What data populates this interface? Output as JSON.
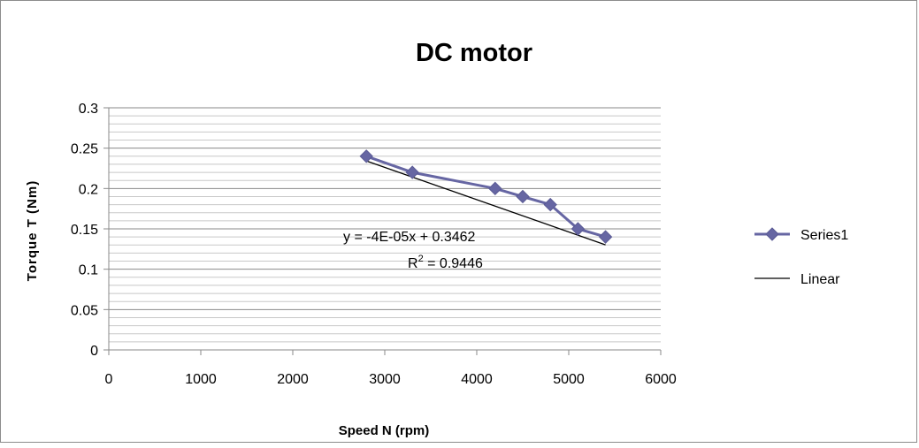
{
  "chart_data": {
    "type": "scatter",
    "title": "DC motor",
    "xlabel": "Speed N (rpm)",
    "ylabel": "Torque T (Nm)",
    "xlim": [
      0,
      6000
    ],
    "ylim": [
      0,
      0.3
    ],
    "x_ticks": [
      0,
      1000,
      2000,
      3000,
      4000,
      5000,
      6000
    ],
    "y_ticks": [
      0,
      0.05,
      0.1,
      0.15,
      0.2,
      0.25,
      0.3
    ],
    "x_tick_labels": [
      "0",
      "1000",
      "2000",
      "3000",
      "4000",
      "5000",
      "6000"
    ],
    "y_tick_labels": [
      "0",
      "0.05",
      "0.1",
      "0.15",
      "0.2",
      "0.25",
      "0.3"
    ],
    "grid": true,
    "legend_position": "right",
    "series": [
      {
        "name": "Series1",
        "color": "#6666a3",
        "marker": "diamond",
        "x": [
          2800,
          3300,
          4200,
          4500,
          4800,
          5100,
          5400
        ],
        "y": [
          0.24,
          0.22,
          0.2,
          0.19,
          0.18,
          0.15,
          0.14
        ]
      }
    ],
    "trendline": {
      "name": "Linear",
      "color": "#000000",
      "slope": -4e-05,
      "intercept": 0.3462,
      "x_range": [
        2800,
        5400
      ]
    },
    "annotations": {
      "equation": "y = -4E-05x + 0.3462",
      "r2_prefix": "R",
      "r2_exp": "2",
      "r2_value": " = 0.9446"
    }
  }
}
